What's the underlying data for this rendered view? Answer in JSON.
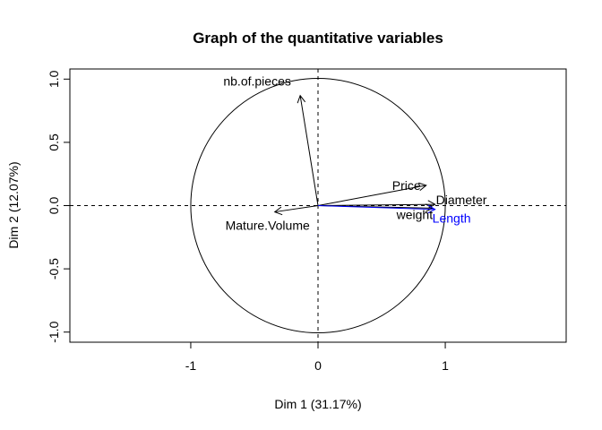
{
  "chart_data": {
    "type": "scatter",
    "subtype": "pca-correlation-circle",
    "title": "Graph of the quantitative variables",
    "xlabel": "Dim 1 (31.17%)",
    "ylabel": "Dim 2 (12.07%)",
    "xlim": [
      -1.95,
      1.95
    ],
    "ylim": [
      -1.08,
      1.08
    ],
    "x_ticks": [
      -1,
      0,
      1
    ],
    "x_tick_labels": [
      "-1",
      "0",
      "1"
    ],
    "y_ticks": [
      -1.0,
      -0.5,
      0.0,
      0.5,
      1.0
    ],
    "y_tick_labels": [
      "-1.0",
      "-0.5",
      "0.0",
      "0.5",
      "1.0"
    ],
    "unit_circle": true,
    "reference_lines": "dashed at x=0 and y=0",
    "grid": false,
    "variables": [
      {
        "name": "nb.of.pieces",
        "x": -0.14,
        "y": 0.87,
        "color": "#000000"
      },
      {
        "name": "Price",
        "x": 0.85,
        "y": 0.16,
        "color": "#000000"
      },
      {
        "name": "Diameter",
        "x": 0.92,
        "y": 0.01,
        "color": "#000000"
      },
      {
        "name": "weight",
        "x": 0.9,
        "y": -0.02,
        "color": "#000000"
      },
      {
        "name": "Length",
        "x": 0.92,
        "y": -0.03,
        "color": "#0000ff"
      },
      {
        "name": "Mature.Volume",
        "x": -0.34,
        "y": -0.05,
        "color": "#000000"
      }
    ]
  }
}
